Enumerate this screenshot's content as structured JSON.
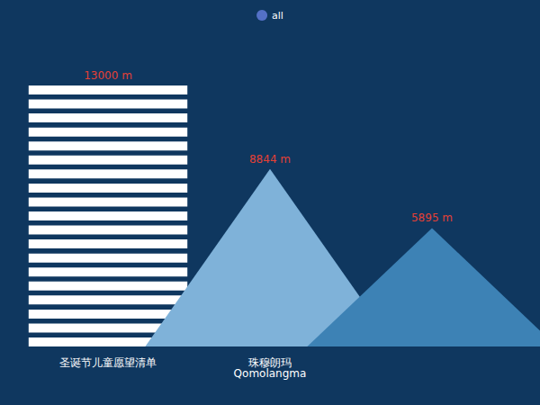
{
  "chart_data": {
    "type": "pictorialBar",
    "categories": [
      "圣诞节儿童愿望清单",
      "珠穆朗玛\nQomolangma",
      null
    ],
    "series": [
      {
        "name": "all",
        "color": "#5470c6",
        "values": [
          13000,
          8844,
          5895
        ],
        "value_labels": [
          "13000 m",
          "8844 m",
          "5895 m"
        ]
      }
    ],
    "ylim": [
      0,
      13000
    ],
    "tick_labels": "x",
    "grid": false,
    "legend": "top",
    "data_labels": true
  }
}
